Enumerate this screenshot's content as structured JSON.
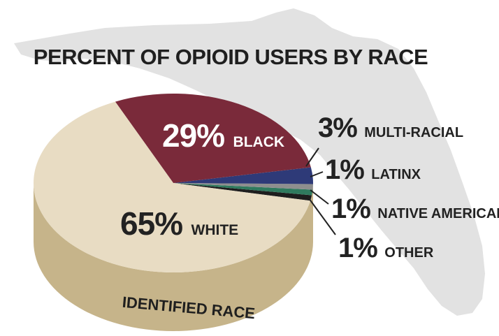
{
  "chart_data": {
    "type": "pie",
    "title": "PERCENT OF OPIOID USERS BY RACE",
    "base_label": "IDENTIFIED RACE",
    "slices": [
      {
        "pct_label": "65%",
        "name": "WHITE",
        "value": 65,
        "color": "#e8dcc3"
      },
      {
        "pct_label": "29%",
        "name": "BLACK",
        "value": 29,
        "color": "#7a2a3a"
      },
      {
        "pct_label": "3%",
        "name": "MULTI-RACIAL",
        "value": 3,
        "color": "#2e3a78"
      },
      {
        "pct_label": "1%",
        "name": "LATINX",
        "value": 1,
        "color": "#8e8e8e"
      },
      {
        "pct_label": "1%",
        "name": "NATIVE AMERICAN",
        "value": 1,
        "color": "#2f7a5e"
      },
      {
        "pct_label": "1%",
        "name": "OTHER",
        "value": 1,
        "color": "#1e1e1e"
      }
    ],
    "base_color": "#c6b48a",
    "background_map_color": "#e2e2e2"
  }
}
